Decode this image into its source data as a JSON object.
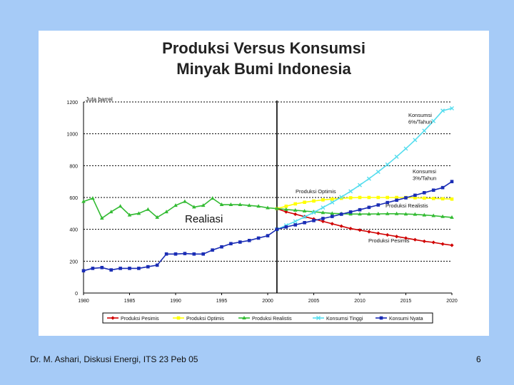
{
  "chart_data": {
    "type": "line",
    "title_line1": "Produksi Versus Konsumsi",
    "title_line2": "Minyak Bumi Indonesia",
    "ylabel": "Juta barrel",
    "xlim": [
      1980,
      2020
    ],
    "ylim": [
      0,
      1200
    ],
    "x_ticks": [
      1980,
      1985,
      1990,
      1995,
      2000,
      2005,
      2010,
      2015,
      2020
    ],
    "y_ticks": [
      0,
      200,
      400,
      600,
      800,
      1000,
      1200
    ],
    "grid": true,
    "divider_year": 2001,
    "legend_position": "bottom",
    "series": [
      {
        "name": "Produksi Pesimis",
        "color": "#d00000",
        "marker": "diamond",
        "x": [
          2001,
          2002,
          2003,
          2004,
          2005,
          2006,
          2007,
          2008,
          2009,
          2010,
          2011,
          2012,
          2013,
          2014,
          2015,
          2016,
          2017,
          2018,
          2019,
          2020
        ],
        "values": [
          530,
          510,
          495,
          480,
          465,
          450,
          435,
          420,
          405,
          395,
          385,
          375,
          365,
          355,
          345,
          335,
          325,
          318,
          308,
          300
        ]
      },
      {
        "name": "Produksi Optimis",
        "color": "#ffff00",
        "marker": "square",
        "x": [
          2001,
          2002,
          2003,
          2004,
          2005,
          2006,
          2007,
          2008,
          2009,
          2010,
          2011,
          2012,
          2013,
          2014,
          2015,
          2016,
          2017,
          2018,
          2019,
          2020
        ],
        "values": [
          530,
          545,
          560,
          570,
          578,
          585,
          590,
          595,
          598,
          600,
          600,
          600,
          600,
          600,
          600,
          598,
          596,
          594,
          592,
          590
        ]
      },
      {
        "name": "Produksi Realistis",
        "color": "#33bb33",
        "marker": "triangle",
        "x": [
          1980,
          1981,
          1982,
          1983,
          1984,
          1985,
          1986,
          1987,
          1988,
          1989,
          1990,
          1991,
          1992,
          1993,
          1994,
          1995,
          1996,
          1997,
          1998,
          1999,
          2000,
          2001,
          2002,
          2003,
          2004,
          2005,
          2006,
          2007,
          2008,
          2009,
          2010,
          2011,
          2012,
          2013,
          2014,
          2015,
          2016,
          2017,
          2018,
          2019,
          2020
        ],
        "values": [
          575,
          595,
          470,
          510,
          545,
          490,
          500,
          525,
          475,
          510,
          550,
          575,
          540,
          550,
          595,
          555,
          555,
          555,
          550,
          545,
          535,
          530,
          525,
          520,
          515,
          510,
          505,
          500,
          498,
          496,
          496,
          496,
          497,
          498,
          498,
          496,
          494,
          490,
          486,
          480,
          475
        ]
      },
      {
        "name": "Konsumsi Tinggi",
        "color": "#55ddee",
        "marker": "x",
        "x": [
          2001,
          2002,
          2003,
          2004,
          2005,
          2006,
          2007,
          2008,
          2009,
          2010,
          2011,
          2012,
          2013,
          2014,
          2015,
          2016,
          2017,
          2018,
          2019,
          2020
        ],
        "values": [
          400,
          425,
          450,
          478,
          506,
          537,
          569,
          603,
          639,
          678,
          718,
          761,
          807,
          856,
          907,
          961,
          1019,
          1080,
          1145,
          1160
        ]
      },
      {
        "name": "Konsumi Nyata",
        "color": "#1a2db5",
        "marker": "square",
        "x": [
          1980,
          1981,
          1982,
          1983,
          1984,
          1985,
          1986,
          1987,
          1988,
          1989,
          1990,
          1991,
          1992,
          1993,
          1994,
          1995,
          1996,
          1997,
          1998,
          1999,
          2000,
          2001,
          2002,
          2003,
          2004,
          2005,
          2006,
          2007,
          2008,
          2009,
          2010,
          2011,
          2012,
          2013,
          2014,
          2015,
          2016,
          2017,
          2018,
          2019,
          2020
        ],
        "values": [
          140,
          155,
          160,
          145,
          155,
          155,
          155,
          165,
          175,
          245,
          245,
          248,
          245,
          245,
          270,
          290,
          310,
          320,
          330,
          345,
          360,
          400,
          415,
          428,
          442,
          455,
          468,
          481,
          495,
          509,
          523,
          538,
          553,
          568,
          583,
          598,
          614,
          630,
          646,
          662,
          700
        ]
      }
    ],
    "annotations": [
      {
        "id": "konsumsi-6",
        "lines": [
          "Konsumsi",
          "6%/Tahun"
        ]
      },
      {
        "id": "konsumsi-3",
        "lines": [
          "Konsumsi",
          "3%/Tahun"
        ]
      },
      {
        "id": "prod-optimis",
        "lines": [
          "Produksi Optimis"
        ]
      },
      {
        "id": "prod-realistis",
        "lines": [
          "Produksi Realistis"
        ]
      },
      {
        "id": "prod-pesimis",
        "lines": [
          "Produksi Pesimis"
        ]
      },
      {
        "id": "realiasi",
        "lines": [
          "Realiasi"
        ]
      }
    ]
  },
  "footer": {
    "text": "Dr. M. Ashari, Diskusi Energi, ITS 23 Peb 05",
    "page": "6"
  },
  "colors": {
    "background": "#a6cbf7",
    "panel": "#ffffff"
  }
}
